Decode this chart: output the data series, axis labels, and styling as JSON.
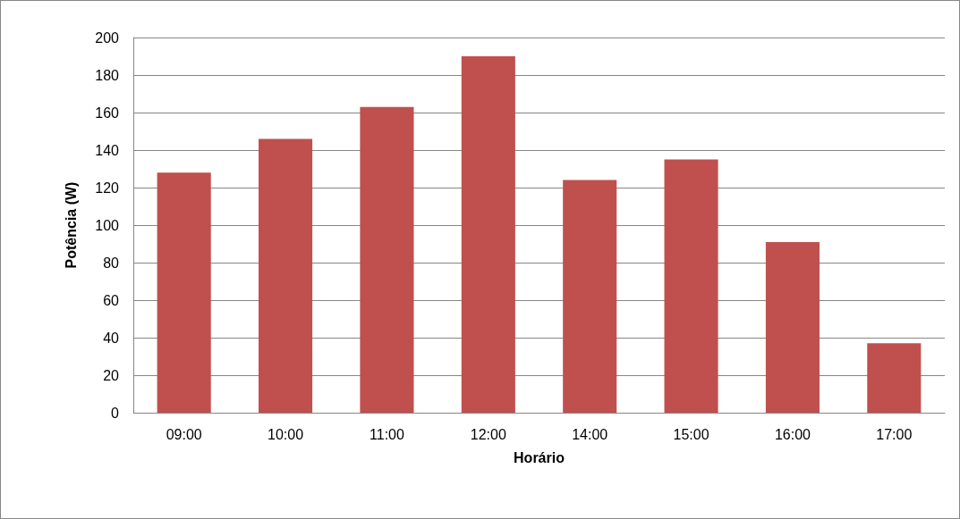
{
  "chart_data": {
    "type": "bar",
    "xlabel": "Horário",
    "ylabel": "Potência (W)",
    "categories": [
      "09:00",
      "10:00",
      "11:00",
      "12:00",
      "14:00",
      "15:00",
      "16:00",
      "17:00"
    ],
    "values": [
      128,
      146,
      163,
      190,
      124,
      135,
      91,
      37
    ],
    "color": "#c0504d",
    "ylim": [
      0,
      200
    ],
    "yticks": [
      0,
      20,
      40,
      60,
      80,
      100,
      120,
      140,
      160,
      180,
      200
    ],
    "grid": "y"
  }
}
